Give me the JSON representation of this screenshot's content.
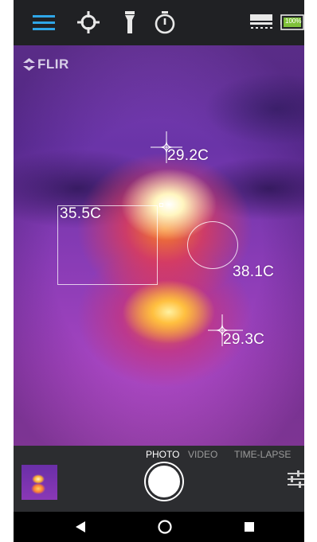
{
  "toolbar": {
    "menu_icon": "hamburger-menu-icon",
    "spot_icon": "crosshair-spot-icon",
    "flashlight_icon": "flashlight-icon",
    "timer_icon": "timer-icon",
    "storage_icon": "storage-icon",
    "battery_label": "100%",
    "accent_color": "#2fa6e8"
  },
  "viewfinder": {
    "brand": "FLIR",
    "spot_temp": "29.2C",
    "box_temp": "35.5C",
    "circle_temp": "38.1C",
    "lower_spot_temp": "29.3C"
  },
  "capture": {
    "modes": [
      "PHOTO",
      "VIDEO",
      "TIME-LAPSE"
    ],
    "active_mode": "PHOTO"
  },
  "navigation": {
    "back_icon": "back-triangle-icon",
    "home_icon": "home-circle-icon",
    "recents_icon": "recents-square-icon"
  }
}
